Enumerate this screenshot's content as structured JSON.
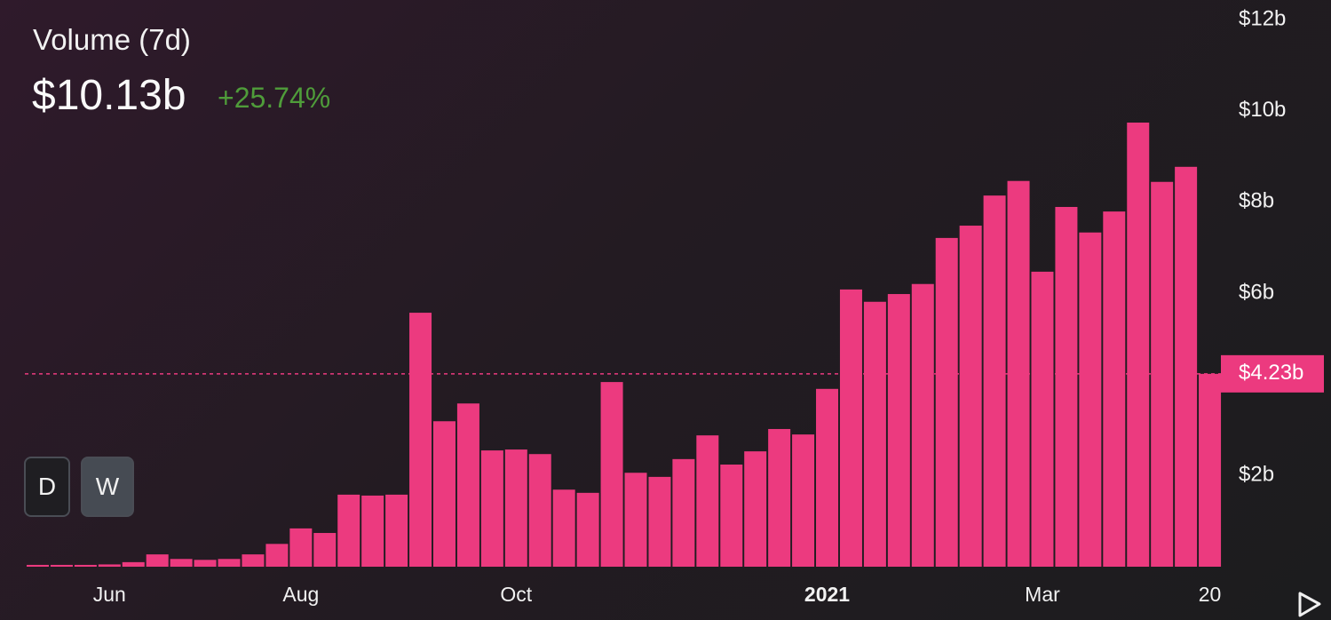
{
  "chart_data": {
    "type": "bar",
    "title": "Volume (7d)",
    "value": "$10.13b",
    "change": "+25.74%",
    "categories": [
      null,
      null,
      null,
      "Jun",
      null,
      null,
      null,
      null,
      null,
      null,
      null,
      "Aug",
      null,
      null,
      null,
      null,
      null,
      null,
      null,
      null,
      "Oct",
      null,
      null,
      null,
      null,
      null,
      null,
      null,
      null,
      null,
      null,
      null,
      null,
      "2021",
      null,
      null,
      null,
      null,
      null,
      null,
      null,
      null,
      "Mar",
      null,
      null,
      null,
      null,
      null,
      null,
      "20"
    ],
    "values": [
      0.04,
      0.04,
      0.04,
      0.05,
      0.1,
      0.27,
      0.17,
      0.15,
      0.17,
      0.27,
      0.5,
      0.84,
      0.74,
      1.58,
      1.56,
      1.58,
      5.57,
      3.19,
      3.58,
      2.55,
      2.57,
      2.47,
      1.69,
      1.62,
      4.05,
      2.06,
      1.97,
      2.36,
      2.88,
      2.24,
      2.53,
      3.02,
      2.9,
      3.9,
      6.08,
      5.81,
      5.98,
      6.2,
      7.21,
      7.48,
      8.14,
      8.46,
      6.47,
      7.89,
      7.33,
      7.79,
      9.74,
      8.44,
      8.77,
      4.23
    ],
    "color": "#ec3a7f",
    "ylim": [
      0,
      12
    ],
    "yticks": [
      {
        "value": 2,
        "label": "$2b"
      },
      {
        "value": 6,
        "label": "$6b"
      },
      {
        "value": 8,
        "label": "$8b"
      },
      {
        "value": 10,
        "label": "$10b"
      },
      {
        "value": 12,
        "label": "$12b"
      }
    ],
    "reference": {
      "value": 4.23,
      "label": "$4.23b"
    },
    "buttons": [
      "D",
      "W"
    ]
  }
}
